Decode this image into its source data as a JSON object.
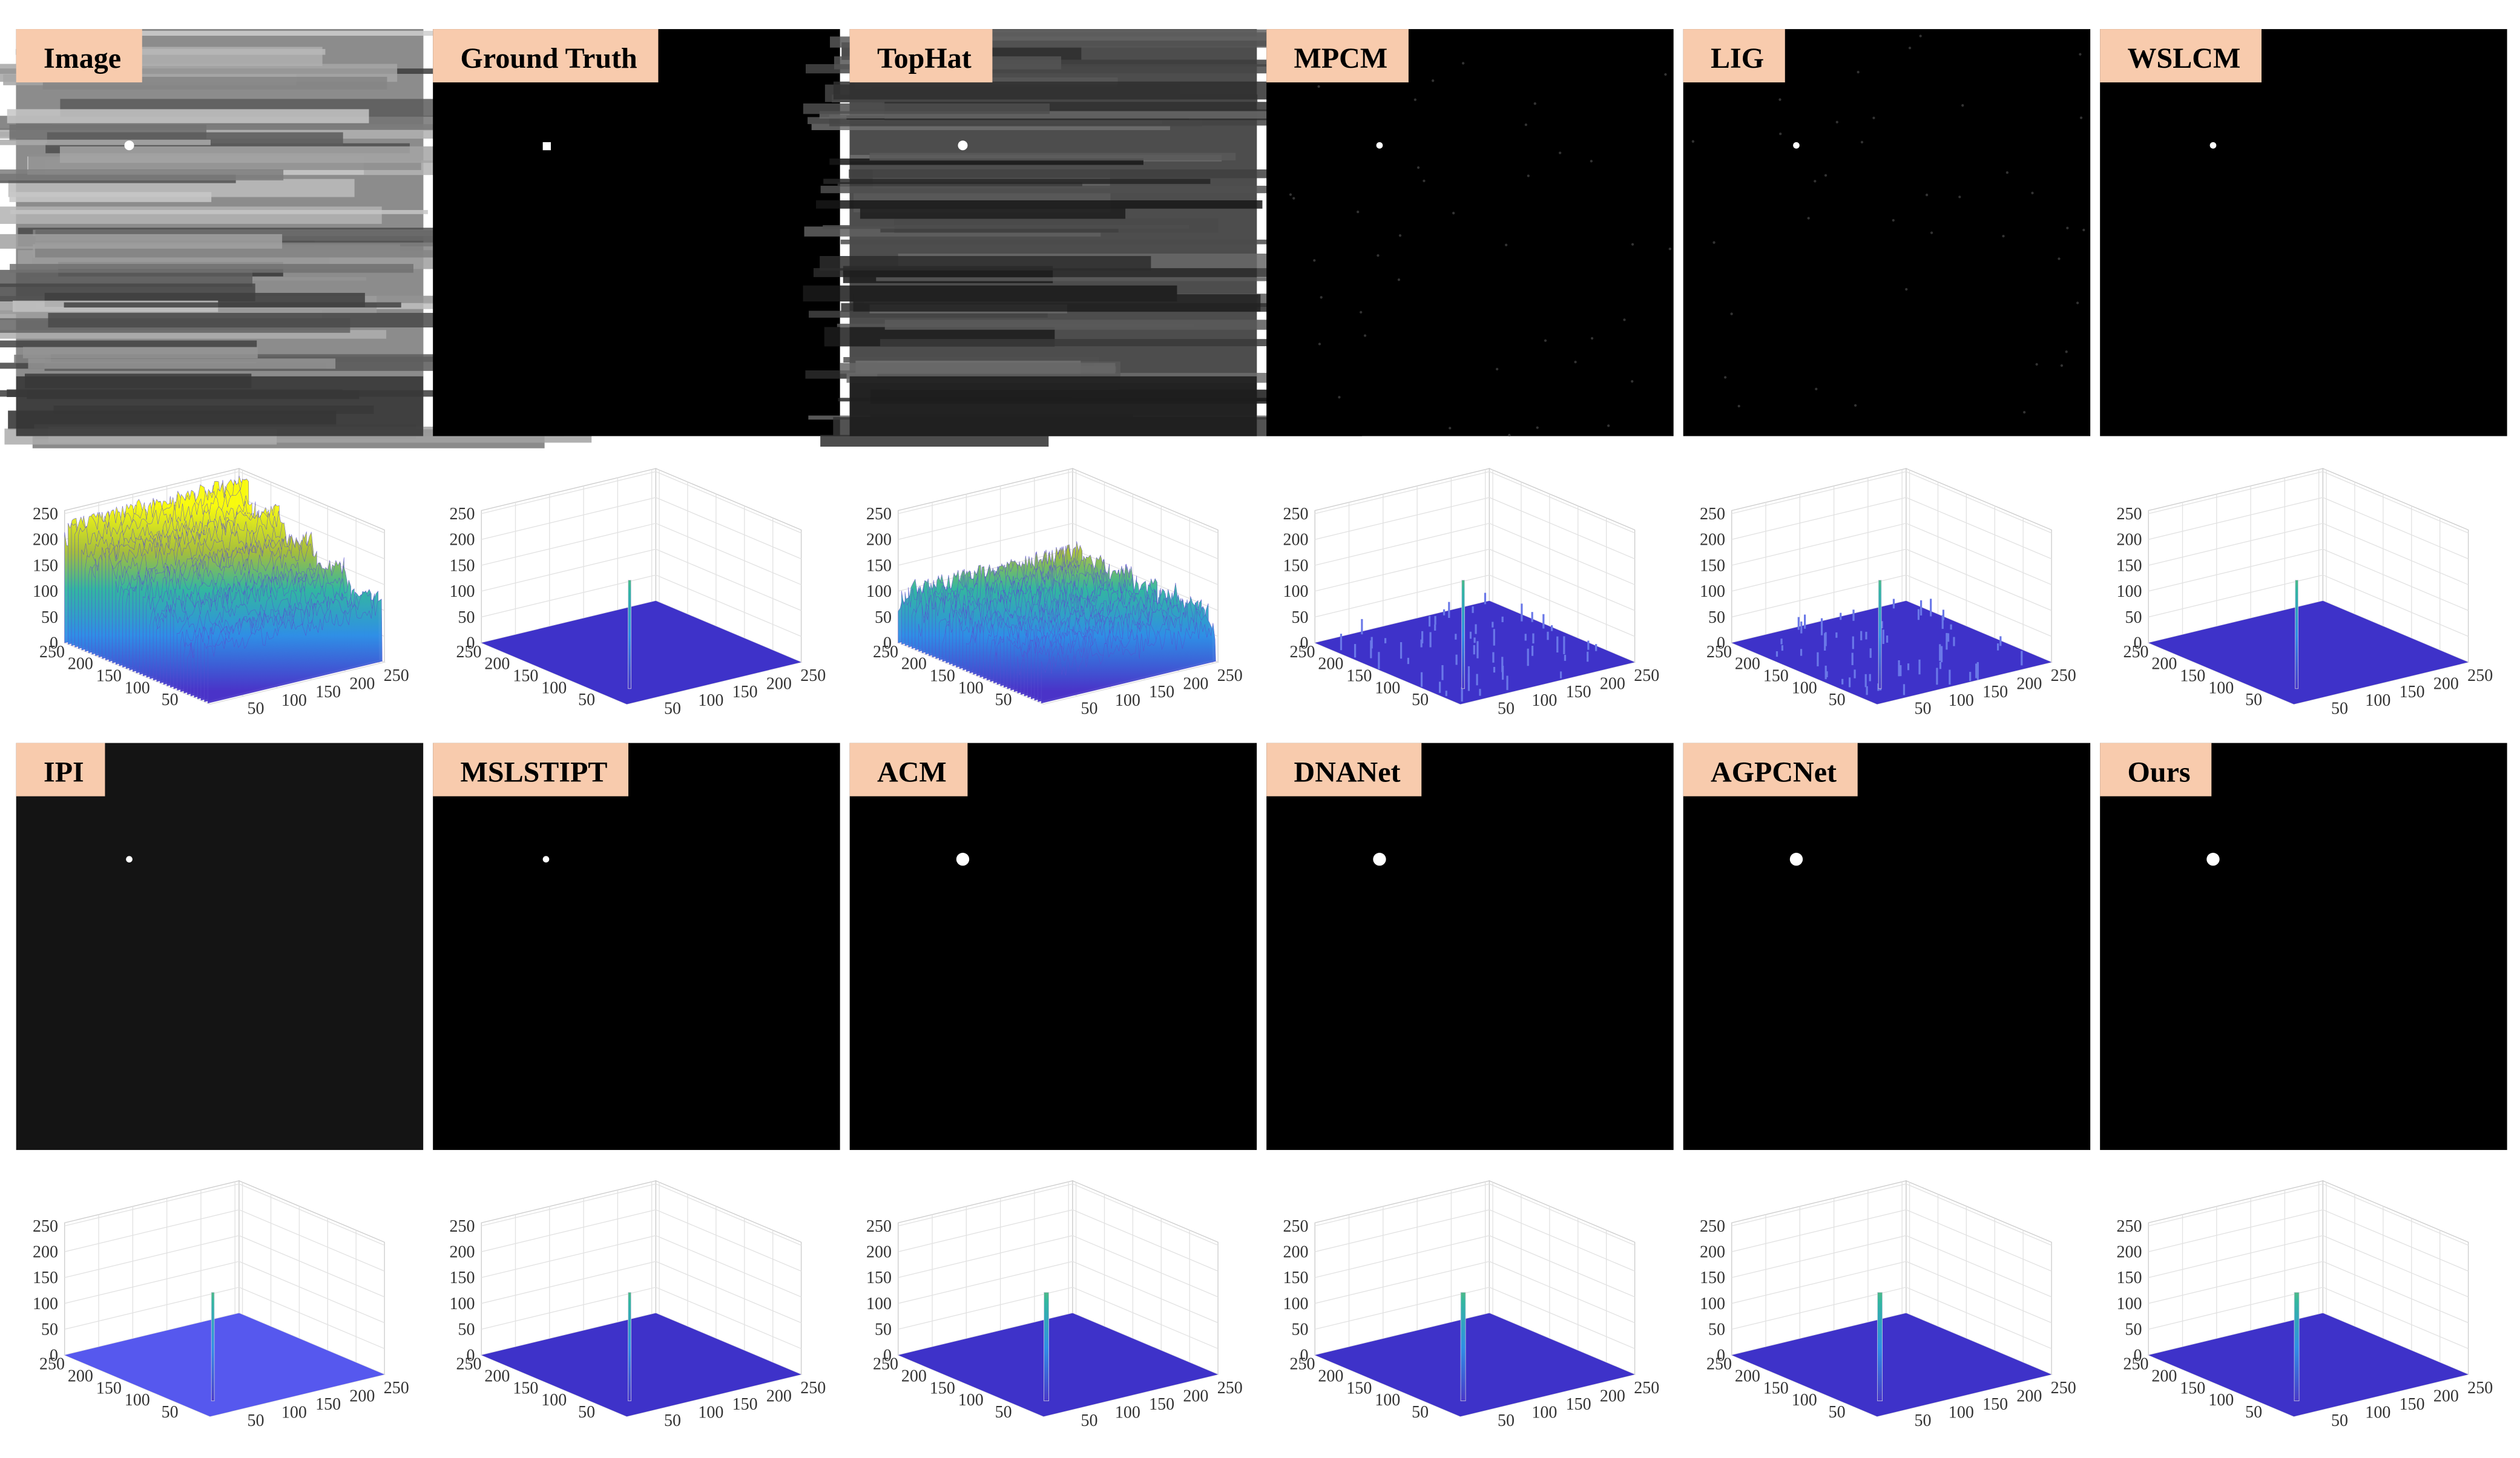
{
  "panels": [
    {
      "label": "Image"
    },
    {
      "label": "Ground Truth"
    },
    {
      "label": "TopHat"
    },
    {
      "label": "MPCM"
    },
    {
      "label": "LIG"
    },
    {
      "label": "WSLCM"
    },
    {
      "label": "IPI"
    },
    {
      "label": "MSLSTIPT"
    },
    {
      "label": "ACM"
    },
    {
      "label": "DNANet"
    },
    {
      "label": "AGPCNet"
    },
    {
      "label": "Ours"
    }
  ],
  "plot_axes": {
    "z_ticks": [
      0,
      50,
      100,
      150,
      200,
      250
    ],
    "x_ticks": [
      50,
      100,
      150,
      200,
      250
    ],
    "y_ticks": [
      250,
      200,
      150,
      100,
      50
    ]
  }
}
